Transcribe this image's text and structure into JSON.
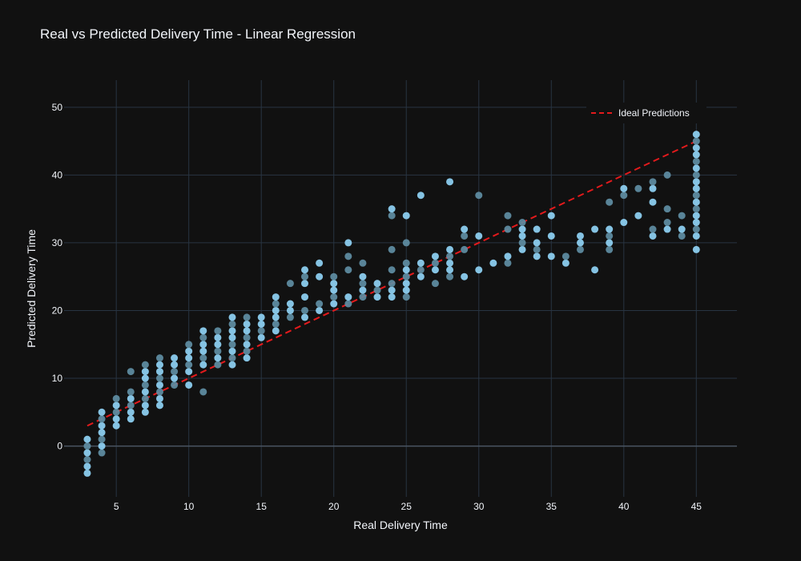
{
  "chart_data": {
    "type": "scatter",
    "title": "Real vs Predicted Delivery Time - Linear Regression",
    "xlabel": "Real Delivery Time",
    "ylabel": "Predicted Delivery Time",
    "xlim": [
      1.4,
      47.8
    ],
    "ylim": [
      -7.5,
      54
    ],
    "xticks": [
      5,
      10,
      15,
      20,
      25,
      30,
      35,
      40,
      45
    ],
    "yticks": [
      0,
      10,
      20,
      30,
      40,
      50
    ],
    "grid": true,
    "legend_position": "top-right",
    "colors": {
      "background": "#111111",
      "grid": "#283442",
      "zeroline": "#4a5562",
      "text": "#f2f5fa",
      "points_light": "#8fd3f5",
      "points_dark": "#5f8ea4",
      "ideal_line": "#e31a1c"
    },
    "series": [
      {
        "name": "Ideal Predictions",
        "kind": "line",
        "style": "dashed",
        "x": [
          3,
          45
        ],
        "y": [
          3,
          45
        ]
      },
      {
        "kind": "scatter",
        "points": [
          [
            3,
            -4
          ],
          [
            3,
            -3
          ],
          [
            3,
            -2
          ],
          [
            3,
            -1
          ],
          [
            3,
            0
          ],
          [
            3,
            1
          ],
          [
            4,
            -1
          ],
          [
            4,
            0
          ],
          [
            4,
            1
          ],
          [
            4,
            2
          ],
          [
            4,
            3
          ],
          [
            4,
            4
          ],
          [
            4,
            5
          ],
          [
            5,
            3
          ],
          [
            5,
            4
          ],
          [
            5,
            5
          ],
          [
            5,
            6
          ],
          [
            5,
            7
          ],
          [
            6,
            4
          ],
          [
            6,
            5
          ],
          [
            6,
            6
          ],
          [
            6,
            7
          ],
          [
            6,
            8
          ],
          [
            6,
            11
          ],
          [
            7,
            5
          ],
          [
            7,
            6
          ],
          [
            7,
            7
          ],
          [
            7,
            8
          ],
          [
            7,
            9
          ],
          [
            7,
            10
          ],
          [
            7,
            11
          ],
          [
            7,
            12
          ],
          [
            8,
            6
          ],
          [
            8,
            7
          ],
          [
            8,
            8
          ],
          [
            8,
            9
          ],
          [
            8,
            10
          ],
          [
            8,
            11
          ],
          [
            8,
            12
          ],
          [
            8,
            13
          ],
          [
            9,
            9
          ],
          [
            9,
            10
          ],
          [
            9,
            11
          ],
          [
            9,
            12
          ],
          [
            9,
            13
          ],
          [
            10,
            9
          ],
          [
            10,
            11
          ],
          [
            10,
            12
          ],
          [
            10,
            13
          ],
          [
            10,
            14
          ],
          [
            10,
            15
          ],
          [
            11,
            8
          ],
          [
            11,
            12
          ],
          [
            11,
            13
          ],
          [
            11,
            14
          ],
          [
            11,
            15
          ],
          [
            11,
            16
          ],
          [
            11,
            17
          ],
          [
            12,
            12
          ],
          [
            12,
            13
          ],
          [
            12,
            14
          ],
          [
            12,
            15
          ],
          [
            12,
            16
          ],
          [
            12,
            17
          ],
          [
            13,
            12
          ],
          [
            13,
            13
          ],
          [
            13,
            14
          ],
          [
            13,
            15
          ],
          [
            13,
            16
          ],
          [
            13,
            17
          ],
          [
            13,
            18
          ],
          [
            13,
            19
          ],
          [
            14,
            13
          ],
          [
            14,
            14
          ],
          [
            14,
            15
          ],
          [
            14,
            16
          ],
          [
            14,
            17
          ],
          [
            14,
            18
          ],
          [
            14,
            19
          ],
          [
            15,
            16
          ],
          [
            15,
            17
          ],
          [
            15,
            18
          ],
          [
            15,
            19
          ],
          [
            16,
            17
          ],
          [
            16,
            18
          ],
          [
            16,
            19
          ],
          [
            16,
            20
          ],
          [
            16,
            21
          ],
          [
            16,
            22
          ],
          [
            17,
            19
          ],
          [
            17,
            20
          ],
          [
            17,
            21
          ],
          [
            17,
            24
          ],
          [
            18,
            19
          ],
          [
            18,
            20
          ],
          [
            18,
            22
          ],
          [
            18,
            24
          ],
          [
            18,
            25
          ],
          [
            18,
            26
          ],
          [
            19,
            20
          ],
          [
            19,
            21
          ],
          [
            19,
            25
          ],
          [
            19,
            27
          ],
          [
            20,
            21
          ],
          [
            20,
            22
          ],
          [
            20,
            23
          ],
          [
            20,
            24
          ],
          [
            20,
            25
          ],
          [
            21,
            21
          ],
          [
            21,
            22
          ],
          [
            21,
            26
          ],
          [
            21,
            28
          ],
          [
            21,
            30
          ],
          [
            22,
            22
          ],
          [
            22,
            23
          ],
          [
            22,
            24
          ],
          [
            22,
            25
          ],
          [
            22,
            27
          ],
          [
            23,
            22
          ],
          [
            23,
            23
          ],
          [
            23,
            24
          ],
          [
            24,
            22
          ],
          [
            24,
            23
          ],
          [
            24,
            24
          ],
          [
            24,
            26
          ],
          [
            24,
            29
          ],
          [
            24,
            34
          ],
          [
            24,
            35
          ],
          [
            25,
            22
          ],
          [
            25,
            23
          ],
          [
            25,
            24
          ],
          [
            25,
            25
          ],
          [
            25,
            26
          ],
          [
            25,
            27
          ],
          [
            25,
            30
          ],
          [
            25,
            34
          ],
          [
            26,
            25
          ],
          [
            26,
            26
          ],
          [
            26,
            27
          ],
          [
            26,
            37
          ],
          [
            27,
            24
          ],
          [
            27,
            26
          ],
          [
            27,
            27
          ],
          [
            27,
            28
          ],
          [
            28,
            25
          ],
          [
            28,
            26
          ],
          [
            28,
            27
          ],
          [
            28,
            28
          ],
          [
            28,
            29
          ],
          [
            28,
            39
          ],
          [
            29,
            25
          ],
          [
            29,
            29
          ],
          [
            29,
            31
          ],
          [
            29,
            32
          ],
          [
            30,
            26
          ],
          [
            30,
            31
          ],
          [
            30,
            37
          ],
          [
            31,
            27
          ],
          [
            32,
            27
          ],
          [
            32,
            28
          ],
          [
            32,
            32
          ],
          [
            32,
            34
          ],
          [
            33,
            29
          ],
          [
            33,
            30
          ],
          [
            33,
            31
          ],
          [
            33,
            32
          ],
          [
            33,
            33
          ],
          [
            34,
            28
          ],
          [
            34,
            29
          ],
          [
            34,
            30
          ],
          [
            34,
            32
          ],
          [
            35,
            28
          ],
          [
            35,
            31
          ],
          [
            35,
            34
          ],
          [
            36,
            27
          ],
          [
            36,
            28
          ],
          [
            37,
            29
          ],
          [
            37,
            30
          ],
          [
            37,
            31
          ],
          [
            38,
            26
          ],
          [
            38,
            32
          ],
          [
            39,
            29
          ],
          [
            39,
            30
          ],
          [
            39,
            31
          ],
          [
            39,
            32
          ],
          [
            39,
            36
          ],
          [
            40,
            33
          ],
          [
            40,
            37
          ],
          [
            40,
            38
          ],
          [
            41,
            34
          ],
          [
            41,
            38
          ],
          [
            42,
            31
          ],
          [
            42,
            32
          ],
          [
            42,
            36
          ],
          [
            42,
            38
          ],
          [
            42,
            39
          ],
          [
            43,
            32
          ],
          [
            43,
            33
          ],
          [
            43,
            35
          ],
          [
            43,
            40
          ],
          [
            44,
            31
          ],
          [
            44,
            32
          ],
          [
            44,
            34
          ],
          [
            45,
            29
          ],
          [
            45,
            31
          ],
          [
            45,
            32
          ],
          [
            45,
            33
          ],
          [
            45,
            34
          ],
          [
            45,
            35
          ],
          [
            45,
            36
          ],
          [
            45,
            37
          ],
          [
            45,
            38
          ],
          [
            45,
            39
          ],
          [
            45,
            40
          ],
          [
            45,
            41
          ],
          [
            45,
            42
          ],
          [
            45,
            43
          ],
          [
            45,
            44
          ],
          [
            45,
            45
          ],
          [
            45,
            46
          ]
        ]
      }
    ]
  }
}
